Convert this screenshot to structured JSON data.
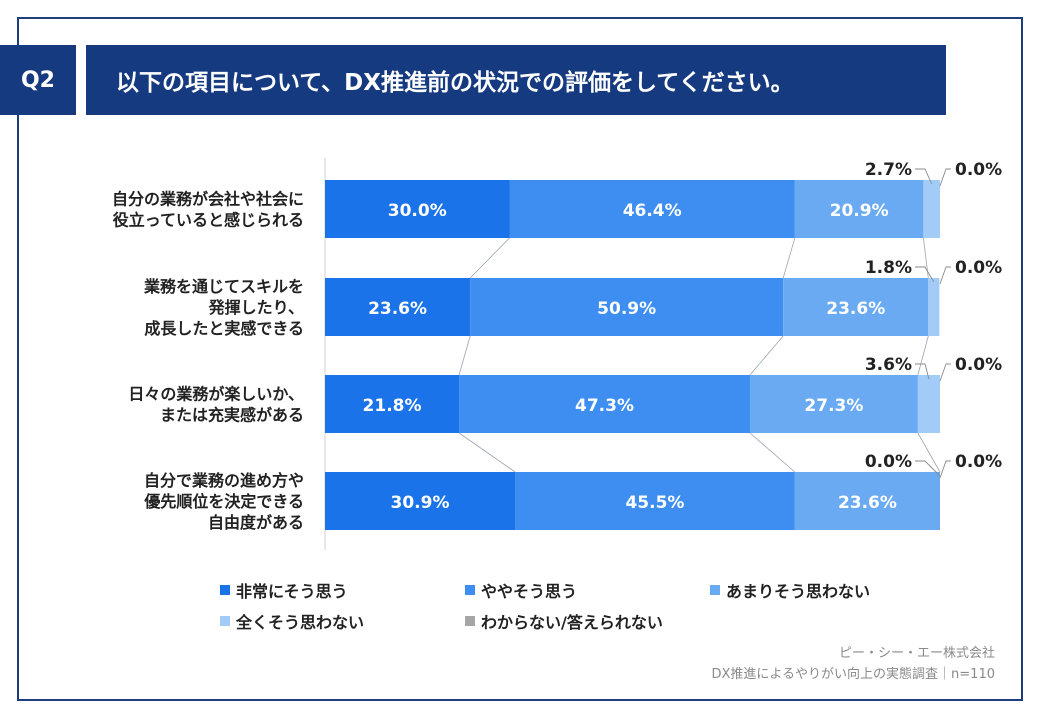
{
  "header": {
    "badge": "Q2",
    "title": "以下の項目について、DX推進前の状況での評価をしてください。"
  },
  "chart_data": {
    "type": "bar",
    "orientation": "horizontal-stacked-100",
    "categories": [
      [
        "自分の業務が会社や社会に",
        "役立っていると感じられる"
      ],
      [
        "業務を通じてスキルを",
        "発揮したり、",
        "成長したと実感できる"
      ],
      [
        "日々の業務が楽しいか、",
        "または充実感がある"
      ],
      [
        "自分で業務の進め方や",
        "優先順位を決定できる",
        "自由度がある"
      ]
    ],
    "series": [
      {
        "name": "非常にそう思う",
        "color": "#1a73e8",
        "values": [
          30.0,
          23.6,
          21.8,
          30.9
        ]
      },
      {
        "name": "ややそう思う",
        "color": "#3d8ef0",
        "values": [
          46.4,
          50.9,
          47.3,
          45.5
        ]
      },
      {
        "name": "あまりそう思わない",
        "color": "#6aaaf2",
        "values": [
          20.9,
          23.6,
          27.3,
          23.6
        ]
      },
      {
        "name": "全くそう思わない",
        "color": "#a3cbf7",
        "values": [
          2.7,
          1.8,
          3.6,
          0.0
        ]
      },
      {
        "name": "わからない/答えられない",
        "color": "#a6a6a6",
        "values": [
          0.0,
          0.0,
          0.0,
          0.0
        ]
      }
    ],
    "value_labels": [
      [
        "30.0%",
        "46.4%",
        "20.9%",
        "2.7%",
        "0.0%"
      ],
      [
        "23.6%",
        "50.9%",
        "23.6%",
        "1.8%",
        "0.0%"
      ],
      [
        "21.8%",
        "47.3%",
        "27.3%",
        "3.6%",
        "0.0%"
      ],
      [
        "30.9%",
        "45.5%",
        "23.6%",
        "0.0%",
        "0.0%"
      ]
    ],
    "xlim": [
      0,
      100
    ],
    "legend_position": "bottom"
  },
  "footer": {
    "company": "ピー・シー・エー株式会社",
    "survey": "DX推進によるやりがい向上の実態調査｜n=110"
  }
}
